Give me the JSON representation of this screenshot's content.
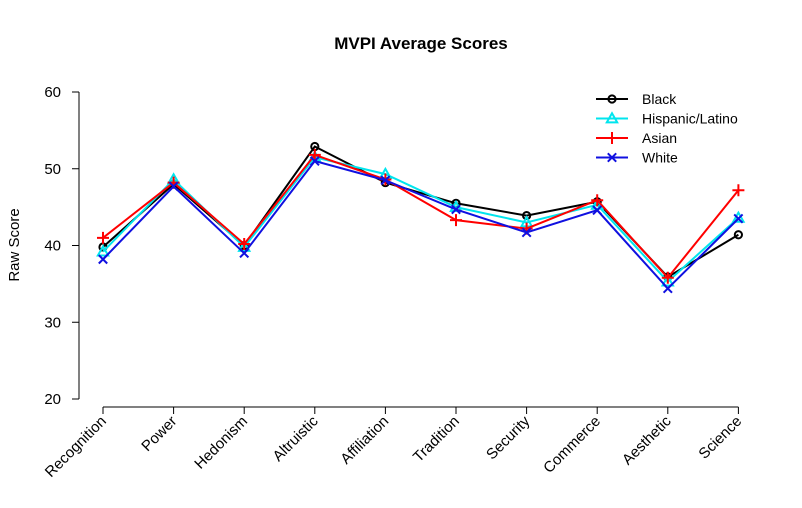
{
  "chart_data": {
    "type": "line",
    "title": "MVPI Average Scores",
    "xlabel": "",
    "ylabel": "Raw Score",
    "categories": [
      "Recognition",
      "Power",
      "Hedonism",
      "Altruistic",
      "Affiliation",
      "Tradition",
      "Security",
      "Commerce",
      "Aesthetic",
      "Science"
    ],
    "ylim": [
      20,
      60
    ],
    "yticks": [
      20,
      30,
      40,
      50,
      60
    ],
    "grid": false,
    "legend_position": "top-right",
    "series": [
      {
        "name": "Black",
        "color": "#000000",
        "marker": "circle",
        "values": [
          39.8,
          48.0,
          40.0,
          52.9,
          48.2,
          45.5,
          43.9,
          45.7,
          35.9,
          41.4
        ]
      },
      {
        "name": "Hispanic/Latino",
        "color": "#00e5ee",
        "marker": "triangle",
        "values": [
          39.2,
          48.6,
          39.8,
          51.5,
          49.3,
          45.0,
          43.0,
          45.3,
          35.3,
          43.6
        ]
      },
      {
        "name": "Asian",
        "color": "#ff0000",
        "marker": "plus",
        "values": [
          41.0,
          48.2,
          40.2,
          51.8,
          48.6,
          43.3,
          42.2,
          45.9,
          35.8,
          47.2
        ]
      },
      {
        "name": "White",
        "color": "#1010e0",
        "marker": "cross",
        "values": [
          38.2,
          47.7,
          39.0,
          51.0,
          48.5,
          44.7,
          41.7,
          44.6,
          34.4,
          43.5
        ]
      }
    ]
  }
}
